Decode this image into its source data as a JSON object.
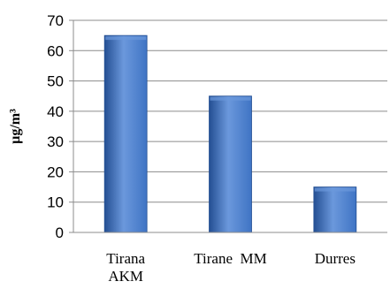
{
  "chart_data": {
    "type": "bar",
    "title": "",
    "xlabel": "",
    "ylabel": "µg/m³",
    "categories": [
      [
        "Tirana",
        "AKM"
      ],
      [
        "Tirane  MM"
      ],
      [
        "Durres"
      ]
    ],
    "values": [
      65,
      45,
      15
    ],
    "ylim": [
      0,
      70
    ],
    "yticks": [
      0,
      10,
      20,
      30,
      40,
      50,
      60,
      70
    ],
    "grid": true,
    "legend": "none",
    "bar_color": "#3f74c4",
    "bar_color_dark": "#244f93",
    "bar_color_light": "#6b98dc"
  }
}
